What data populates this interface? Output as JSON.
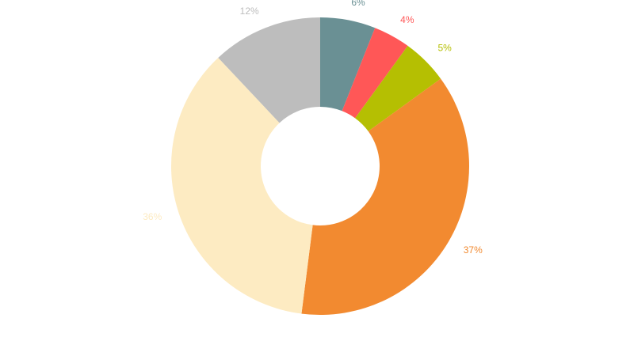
{
  "chart_data": {
    "type": "pie",
    "variant": "donut",
    "title": "",
    "slices": [
      {
        "value": 6,
        "label": "6%",
        "color": "#6a9094"
      },
      {
        "value": 4,
        "label": "4%",
        "color": "#ff5757"
      },
      {
        "value": 5,
        "label": "5%",
        "color": "#b5bf02"
      },
      {
        "value": 37,
        "label": "37%",
        "color": "#f28a30"
      },
      {
        "value": 36,
        "label": "36%",
        "color": "#fdebc2"
      },
      {
        "value": 12,
        "label": "12%",
        "color": "#bdbdbd"
      }
    ]
  }
}
